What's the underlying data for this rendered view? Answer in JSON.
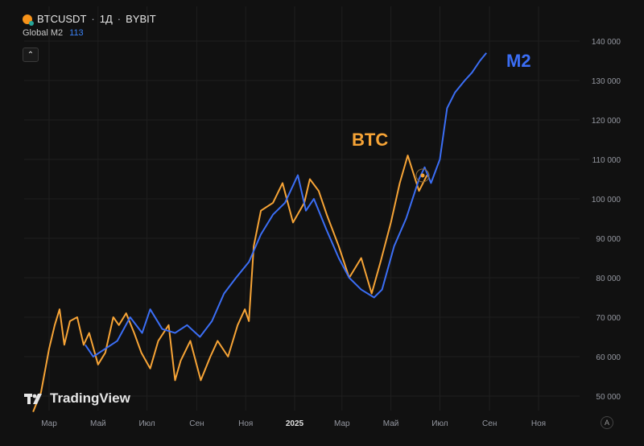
{
  "header": {
    "symbol": "BTCUSDT",
    "interval": "1Д",
    "exchange": "BYBIT",
    "indicator_name": "Global M2",
    "indicator_value": "113"
  },
  "colors": {
    "btc": "#f7a436",
    "m2": "#3b6ef5",
    "grid": "#1f1f1f",
    "background": "#111111"
  },
  "watermark": "TradingView",
  "auto_label": "A",
  "chart_data": {
    "type": "line",
    "x_ticks": [
      "Мар",
      "Май",
      "Июл",
      "Сен",
      "Ноя",
      "2025",
      "Мар",
      "Май",
      "Июл",
      "Сен",
      "Ноя"
    ],
    "y_ticks": [
      "50 000",
      "60 000",
      "70 000",
      "80 000",
      "90 000",
      "100 000",
      "110 000",
      "120 000",
      "130 000",
      "140 000"
    ],
    "ylim": [
      48000,
      142000
    ],
    "grid": true,
    "annotations": [
      {
        "text": "BTC",
        "color": "#f7a436"
      },
      {
        "text": "M2",
        "color": "#3b6ef5"
      }
    ],
    "series": [
      {
        "name": "BTC",
        "color": "#f7a436",
        "x": [
          "2024-02-10",
          "2024-02-20",
          "2024-03-01",
          "2024-03-08",
          "2024-03-14",
          "2024-03-20",
          "2024-03-27",
          "2024-04-05",
          "2024-04-13",
          "2024-04-20",
          "2024-05-01",
          "2024-05-10",
          "2024-05-20",
          "2024-05-27",
          "2024-06-05",
          "2024-06-15",
          "2024-06-24",
          "2024-07-05",
          "2024-07-15",
          "2024-07-28",
          "2024-08-05",
          "2024-08-12",
          "2024-08-24",
          "2024-09-06",
          "2024-09-18",
          "2024-09-27",
          "2024-10-10",
          "2024-10-22",
          "2024-10-31",
          "2024-11-05",
          "2024-11-11",
          "2024-11-20",
          "2024-12-05",
          "2024-12-17",
          "2024-12-30",
          "2025-01-13",
          "2025-01-20",
          "2025-01-31",
          "2025-02-10",
          "2025-02-25",
          "2025-03-10",
          "2025-03-25",
          "2025-04-07",
          "2025-04-18",
          "2025-05-01",
          "2025-05-12",
          "2025-05-22",
          "2025-06-05",
          "2025-06-15"
        ],
        "values": [
          46000,
          51000,
          62000,
          68000,
          72000,
          63000,
          69000,
          70000,
          63000,
          66000,
          58000,
          61000,
          70000,
          68000,
          71000,
          66000,
          61000,
          57000,
          64000,
          68000,
          54000,
          59000,
          64000,
          54000,
          60000,
          64000,
          60000,
          68000,
          72000,
          69000,
          88000,
          97000,
          99000,
          104000,
          94000,
          99000,
          105000,
          102000,
          96000,
          88000,
          80000,
          85000,
          76000,
          84000,
          94000,
          104000,
          111000,
          102000,
          106000
        ]
      },
      {
        "name": "M2",
        "color": "#3b6ef5",
        "x": [
          "2024-04-15",
          "2024-04-25",
          "2024-05-10",
          "2024-05-25",
          "2024-06-10",
          "2024-06-25",
          "2024-07-05",
          "2024-07-20",
          "2024-08-05",
          "2024-08-20",
          "2024-09-05",
          "2024-09-20",
          "2024-10-05",
          "2024-10-20",
          "2024-11-05",
          "2024-11-20",
          "2024-12-05",
          "2024-12-20",
          "2025-01-05",
          "2025-01-15",
          "2025-01-25",
          "2025-02-10",
          "2025-02-25",
          "2025-03-10",
          "2025-03-25",
          "2025-04-10",
          "2025-04-20",
          "2025-05-05",
          "2025-05-20",
          "2025-06-05",
          "2025-06-12",
          "2025-06-20",
          "2025-07-01",
          "2025-07-10",
          "2025-07-20",
          "2025-08-01",
          "2025-08-10",
          "2025-08-20",
          "2025-08-28"
        ],
        "values": [
          63000,
          60000,
          62000,
          64000,
          70000,
          66000,
          72000,
          67000,
          66000,
          68000,
          65000,
          69000,
          76000,
          80000,
          84000,
          91000,
          96000,
          99000,
          106000,
          97000,
          100000,
          92000,
          85000,
          80000,
          77000,
          75000,
          77000,
          88000,
          95000,
          105000,
          108000,
          104000,
          110000,
          123000,
          127000,
          130000,
          132000,
          135000,
          137000
        ]
      }
    ]
  }
}
